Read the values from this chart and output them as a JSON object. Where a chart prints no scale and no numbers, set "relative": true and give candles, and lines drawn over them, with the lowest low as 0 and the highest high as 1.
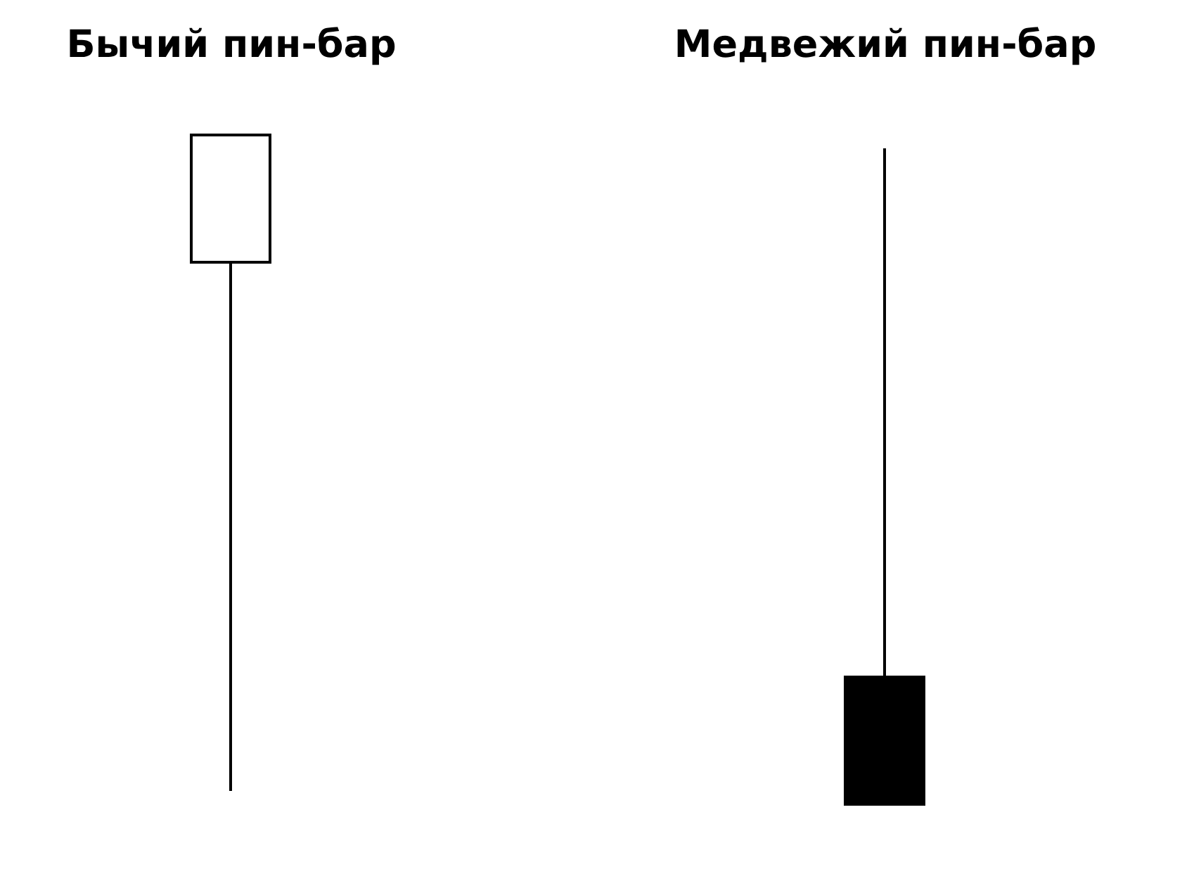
{
  "chart_data": {
    "type": "candlestick",
    "relative": true,
    "categories": [
      "Бычий пин-бар",
      "Медвежий пин-бар"
    ],
    "ohlc": [
      [
        0.81,
        1,
        0.02,
        1
      ],
      [
        0.19,
        0.98,
        0,
        0
      ]
    ]
  }
}
